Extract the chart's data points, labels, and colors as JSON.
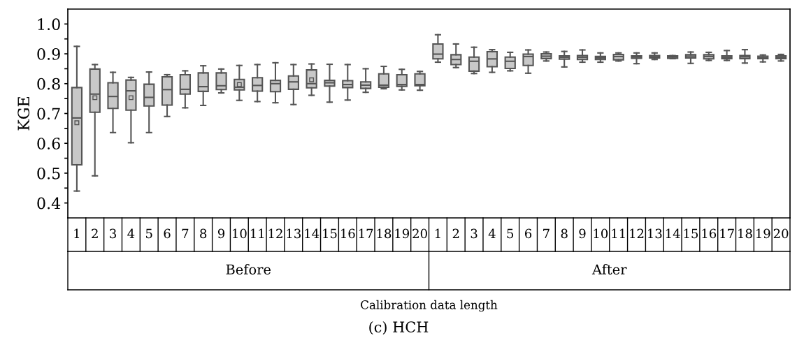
{
  "chart_data": {
    "type": "box",
    "ylabel": "KGE",
    "categories": [
      "1",
      "2",
      "3",
      "4",
      "5",
      "6",
      "7",
      "8",
      "9",
      "10",
      "11",
      "12",
      "13",
      "14",
      "15",
      "16",
      "17",
      "18",
      "19",
      "20",
      "1",
      "2",
      "3",
      "4",
      "5",
      "6",
      "7",
      "8",
      "9",
      "10",
      "11",
      "12",
      "13",
      "14",
      "15",
      "16",
      "17",
      "18",
      "19",
      "20"
    ],
    "annotations": [
      "Before",
      "After",
      "Calibration data length",
      "(c) HCH"
    ],
    "color": "#c8c8c8",
    "ylim": [
      0.35,
      1.05
    ],
    "yticks": [
      0.4,
      {
        "value": 0.45,
        "label": null
      },
      0.5,
      {
        "value": 0.55,
        "label": null
      },
      0.6,
      {
        "value": 0.65,
        "label": null
      },
      0.7,
      {
        "value": 0.75,
        "label": null
      },
      0.8,
      {
        "value": 0.85,
        "label": null
      },
      0.9,
      {
        "value": 0.95,
        "label": null
      },
      {
        "value": 1.0,
        "label": "1.0"
      }
    ],
    "grid": false,
    "boxes": [
      {
        "low": 0.44,
        "q1": 0.528,
        "median": 0.685,
        "q3": 0.787,
        "high": 0.925,
        "mean": 0.669
      },
      {
        "low": 0.491,
        "q1": 0.704,
        "median": 0.765,
        "q3": 0.849,
        "high": 0.864,
        "mean": 0.753
      },
      {
        "low": 0.636,
        "q1": 0.717,
        "median": 0.757,
        "q3": 0.803,
        "high": 0.838
      },
      {
        "low": 0.602,
        "q1": 0.711,
        "median": 0.776,
        "q3": 0.812,
        "high": 0.821,
        "mean": 0.753
      },
      {
        "low": 0.636,
        "q1": 0.725,
        "median": 0.754,
        "q3": 0.798,
        "high": 0.839
      },
      {
        "low": 0.69,
        "q1": 0.728,
        "median": 0.78,
        "q3": 0.823,
        "high": 0.83
      },
      {
        "low": 0.719,
        "q1": 0.765,
        "median": 0.781,
        "q3": 0.83,
        "high": 0.843
      },
      {
        "low": 0.727,
        "q1": 0.774,
        "median": 0.79,
        "q3": 0.836,
        "high": 0.86
      },
      {
        "low": 0.769,
        "q1": 0.78,
        "median": 0.793,
        "q3": 0.836,
        "high": 0.849
      },
      {
        "low": 0.744,
        "q1": 0.779,
        "median": 0.788,
        "q3": 0.814,
        "high": 0.861,
        "mean": 0.797
      },
      {
        "low": 0.74,
        "q1": 0.775,
        "median": 0.794,
        "q3": 0.82,
        "high": 0.864
      },
      {
        "low": 0.736,
        "q1": 0.773,
        "median": 0.8,
        "q3": 0.811,
        "high": 0.87
      },
      {
        "low": 0.73,
        "q1": 0.781,
        "median": 0.806,
        "q3": 0.826,
        "high": 0.864
      },
      {
        "low": 0.761,
        "q1": 0.786,
        "median": 0.8,
        "q3": 0.846,
        "high": 0.866,
        "mean": 0.813
      },
      {
        "low": 0.738,
        "q1": 0.792,
        "median": 0.803,
        "q3": 0.811,
        "high": 0.865
      },
      {
        "low": 0.745,
        "q1": 0.787,
        "median": 0.797,
        "q3": 0.81,
        "high": 0.864
      },
      {
        "low": 0.771,
        "q1": 0.784,
        "median": 0.795,
        "q3": 0.806,
        "high": 0.85
      },
      {
        "low": 0.783,
        "q1": 0.788,
        "median": 0.795,
        "q3": 0.833,
        "high": 0.858
      },
      {
        "low": 0.779,
        "q1": 0.791,
        "median": 0.797,
        "q3": 0.83,
        "high": 0.848
      },
      {
        "low": 0.778,
        "q1": 0.793,
        "median": 0.797,
        "q3": 0.833,
        "high": 0.841
      },
      {
        "low": 0.872,
        "q1": 0.883,
        "median": 0.899,
        "q3": 0.933,
        "high": 0.964
      },
      {
        "low": 0.854,
        "q1": 0.864,
        "median": 0.881,
        "q3": 0.897,
        "high": 0.933
      },
      {
        "low": 0.834,
        "q1": 0.842,
        "median": 0.875,
        "q3": 0.889,
        "high": 0.922
      },
      {
        "low": 0.838,
        "q1": 0.857,
        "median": 0.883,
        "q3": 0.907,
        "high": 0.914
      },
      {
        "low": 0.843,
        "q1": 0.851,
        "median": 0.875,
        "q3": 0.889,
        "high": 0.905
      },
      {
        "low": 0.835,
        "q1": 0.861,
        "median": 0.891,
        "q3": 0.899,
        "high": 0.913
      },
      {
        "low": 0.876,
        "q1": 0.884,
        "median": 0.892,
        "q3": 0.9,
        "high": 0.906
      },
      {
        "low": 0.856,
        "q1": 0.882,
        "median": 0.888,
        "q3": 0.893,
        "high": 0.908
      },
      {
        "low": 0.872,
        "q1": 0.881,
        "median": 0.888,
        "q3": 0.894,
        "high": 0.913
      },
      {
        "low": 0.872,
        "q1": 0.881,
        "median": 0.886,
        "q3": 0.891,
        "high": 0.903
      },
      {
        "low": 0.876,
        "q1": 0.88,
        "median": 0.891,
        "q3": 0.898,
        "high": 0.903
      },
      {
        "low": 0.867,
        "q1": 0.885,
        "median": 0.889,
        "q3": 0.893,
        "high": 0.903
      },
      {
        "low": 0.881,
        "q1": 0.886,
        "median": 0.89,
        "q3": 0.894,
        "high": 0.903
      },
      {
        "low": 0.884,
        "q1": 0.885,
        "median": 0.889,
        "q3": 0.893,
        "high": 0.894
      },
      {
        "low": 0.868,
        "q1": 0.886,
        "median": 0.892,
        "q3": 0.897,
        "high": 0.906
      },
      {
        "low": 0.878,
        "q1": 0.883,
        "median": 0.891,
        "q3": 0.897,
        "high": 0.905
      },
      {
        "low": 0.878,
        "q1": 0.884,
        "median": 0.888,
        "q3": 0.893,
        "high": 0.911
      },
      {
        "low": 0.869,
        "q1": 0.884,
        "median": 0.89,
        "q3": 0.894,
        "high": 0.914
      },
      {
        "low": 0.873,
        "q1": 0.884,
        "median": 0.887,
        "q3": 0.892,
        "high": 0.896
      },
      {
        "low": 0.876,
        "q1": 0.884,
        "median": 0.888,
        "q3": 0.893,
        "high": 0.898
      }
    ]
  }
}
